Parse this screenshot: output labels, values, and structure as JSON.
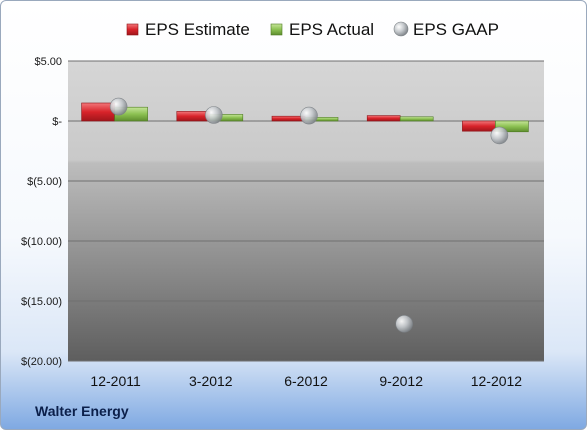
{
  "brand": "Walter Energy",
  "colors": {
    "estimate": "#d8232a",
    "actual": "#8cc152",
    "gaap": "#c5c9cd"
  },
  "chart_data": {
    "type": "bar",
    "categories": [
      "12-2011",
      "3-2012",
      "6-2012",
      "9-2012",
      "12-2012"
    ],
    "series": [
      {
        "name": "EPS Estimate",
        "kind": "bar",
        "values": [
          1.5,
          0.8,
          0.4,
          0.45,
          -0.85
        ]
      },
      {
        "name": "EPS Actual",
        "kind": "bar",
        "values": [
          1.15,
          0.55,
          0.3,
          0.35,
          -0.9
        ]
      },
      {
        "name": "EPS GAAP",
        "kind": "scatter",
        "values": [
          1.2,
          0.5,
          0.45,
          -16.9,
          -1.2
        ]
      }
    ],
    "ylim": [
      -20,
      5
    ],
    "yticks": [
      5,
      0,
      -5,
      -10,
      -15,
      -20
    ],
    "ytick_labels": [
      "$5.00",
      "$-",
      "$(5.00)",
      "$(10.00)",
      "$(15.00)",
      "$(20.00)"
    ],
    "title": "",
    "xlabel": "",
    "ylabel": "",
    "legend": "top",
    "grid": true
  }
}
